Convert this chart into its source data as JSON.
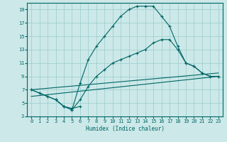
{
  "xlabel": "Humidex (Indice chaleur)",
  "xlim": [
    -0.5,
    23.5
  ],
  "ylim": [
    3,
    20
  ],
  "yticks": [
    3,
    5,
    7,
    9,
    11,
    13,
    15,
    17,
    19
  ],
  "xticks": [
    0,
    1,
    2,
    3,
    4,
    5,
    6,
    7,
    8,
    9,
    10,
    11,
    12,
    13,
    14,
    15,
    16,
    17,
    18,
    19,
    20,
    21,
    22,
    23
  ],
  "bg_color": "#cce8e8",
  "grid_color": "#99cccc",
  "line_color": "#006666",
  "line1_x": [
    0,
    1,
    2,
    3,
    4,
    5,
    6,
    7,
    8,
    9,
    10,
    11,
    12,
    13,
    14,
    15,
    16,
    17,
    18,
    19,
    20,
    21,
    22,
    23
  ],
  "line1_y": [
    7,
    6.5,
    6,
    5.5,
    4.5,
    4.0,
    8.0,
    11.5,
    13.5,
    15.0,
    16.5,
    18.0,
    19.0,
    19.5,
    19.5,
    19.5,
    18.0,
    16.5,
    13.5,
    11.0,
    10.5,
    9.5,
    9.0,
    9.0
  ],
  "line2_x": [
    0,
    1,
    2,
    3,
    4,
    5,
    6,
    7,
    8,
    9,
    10,
    11,
    12,
    13,
    14,
    15,
    16,
    17,
    18,
    19,
    20,
    21,
    22,
    23
  ],
  "line2_y": [
    7,
    6.5,
    6,
    5.5,
    4.5,
    4.0,
    5.5,
    7.5,
    9.0,
    10.0,
    11.0,
    11.5,
    12.0,
    12.5,
    13.0,
    14.0,
    14.5,
    14.5,
    13.0,
    11.0,
    10.5,
    9.5,
    9.0,
    9.0
  ],
  "line3_x": [
    0,
    23
  ],
  "line3_y": [
    7.0,
    9.5
  ],
  "line4_x": [
    0,
    23
  ],
  "line4_y": [
    6.0,
    9.0
  ],
  "line5_x": [
    3,
    4,
    5,
    6
  ],
  "line5_y": [
    5.5,
    4.5,
    4.2,
    4.5
  ],
  "marker": "+"
}
